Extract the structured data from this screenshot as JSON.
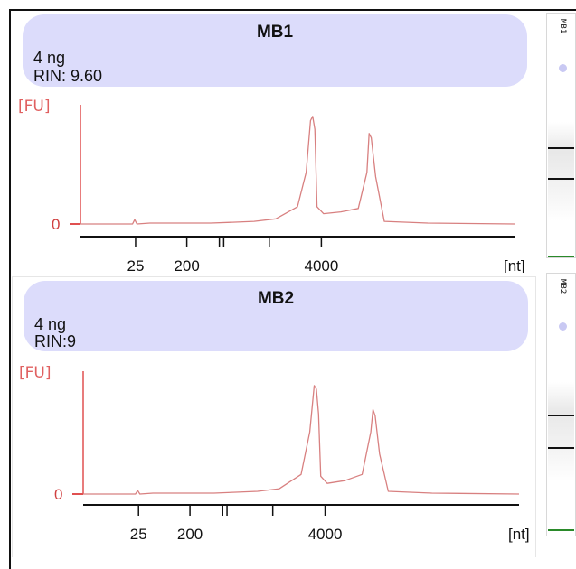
{
  "colors": {
    "trace": "#d88080",
    "axis": "#e05050",
    "header_bg": "#dcdcfb",
    "ladder_marker": "#2a8a2a"
  },
  "panels": [
    {
      "sample": "MB1",
      "concentration": "4 ng",
      "rin": "RIN: 9.60",
      "y_unit": "[FU]",
      "x_unit": "[nt]",
      "zero_label": "0",
      "x_tick_labels": [
        "25",
        "200",
        "4000"
      ],
      "gel_label": "MB1"
    },
    {
      "sample": "MB2",
      "concentration": "4 ng",
      "rin": "RIN:9",
      "y_unit": "[FU]",
      "x_unit": "[nt]",
      "zero_label": "0",
      "x_tick_labels": [
        "25",
        "200",
        "4000"
      ],
      "gel_label": "MB2"
    }
  ],
  "chart_data": [
    {
      "type": "line",
      "title": "MB1",
      "xlabel": "[nt]",
      "ylabel": "[FU]",
      "x_tick_labels": [
        "25",
        "200",
        "4000"
      ],
      "series": [
        {
          "x_positions_relative": [
            0,
            0.05,
            0.1,
            0.12,
            0.125,
            0.13,
            0.16,
            0.3,
            0.35,
            0.4,
            0.45,
            0.5,
            0.52,
            0.53,
            0.535,
            0.54,
            0.545,
            0.56,
            0.6,
            0.64,
            0.66,
            0.665,
            0.67,
            0.68,
            0.7,
            0.8,
            1.0
          ],
          "values": [
            0,
            0,
            0,
            0,
            5,
            0,
            1,
            1,
            2,
            3,
            6,
            20,
            60,
            120,
            125,
            110,
            20,
            12,
            14,
            18,
            60,
            105,
            100,
            55,
            3,
            1,
            0
          ]
        }
      ],
      "ylim": [
        0,
        130
      ]
    },
    {
      "type": "line",
      "title": "MB2",
      "xlabel": "[nt]",
      "ylabel": "[FU]",
      "x_tick_labels": [
        "25",
        "200",
        "4000"
      ],
      "series": [
        {
          "x_positions_relative": [
            0,
            0.05,
            0.1,
            0.12,
            0.125,
            0.13,
            0.16,
            0.3,
            0.35,
            0.4,
            0.45,
            0.5,
            0.52,
            0.53,
            0.535,
            0.54,
            0.545,
            0.56,
            0.6,
            0.64,
            0.66,
            0.665,
            0.67,
            0.68,
            0.7,
            0.8,
            1.0
          ],
          "values": [
            0,
            0,
            0,
            0,
            4,
            0,
            1,
            1,
            2,
            3,
            6,
            22,
            70,
            122,
            118,
            90,
            20,
            12,
            15,
            22,
            70,
            95,
            88,
            45,
            3,
            1,
            0
          ]
        }
      ],
      "ylim": [
        0,
        130
      ]
    }
  ]
}
